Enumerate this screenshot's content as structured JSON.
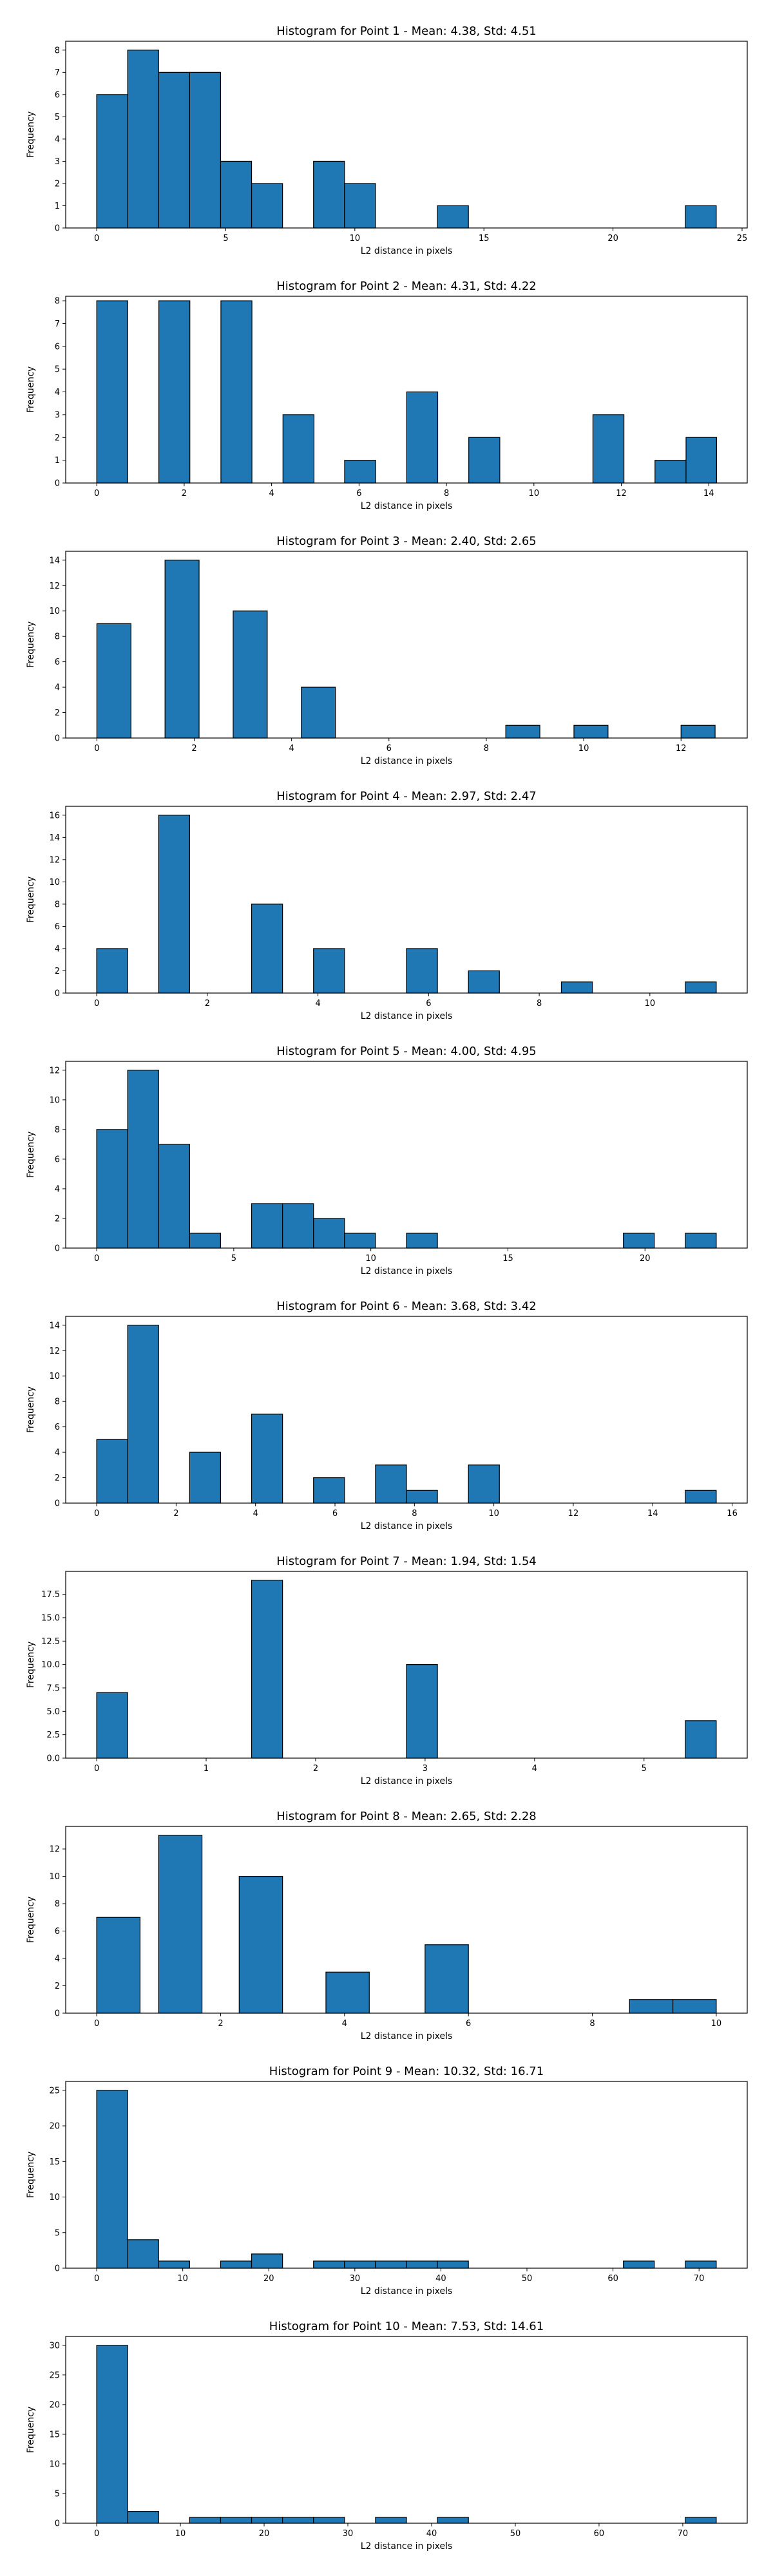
{
  "colors": {
    "bar_fill": "#1f77b4",
    "bar_edge": "#000000",
    "axes": "#000000",
    "background": "#ffffff"
  },
  "chart_data": [
    {
      "type": "bar",
      "title": "Histogram for Point 1 - Mean: 4.38, Std: 4.51",
      "xlabel": "L2 distance in pixels",
      "ylabel": "Frequency",
      "xlim": [
        -1.2,
        25.2
      ],
      "ylim": [
        0,
        8.4
      ],
      "xticks": [
        0,
        5,
        10,
        15,
        20,
        25
      ],
      "yticks": [
        0,
        1,
        2,
        3,
        4,
        5,
        6,
        7,
        8
      ],
      "grid": false,
      "bins": [
        {
          "x0": 0.0,
          "x1": 1.2,
          "count": 6
        },
        {
          "x0": 1.2,
          "x1": 2.4,
          "count": 8
        },
        {
          "x0": 2.4,
          "x1": 3.6,
          "count": 7
        },
        {
          "x0": 3.6,
          "x1": 4.8,
          "count": 7
        },
        {
          "x0": 4.8,
          "x1": 6.0,
          "count": 3
        },
        {
          "x0": 6.0,
          "x1": 7.2,
          "count": 2
        },
        {
          "x0": 8.4,
          "x1": 9.6,
          "count": 3
        },
        {
          "x0": 9.6,
          "x1": 10.8,
          "count": 2
        },
        {
          "x0": 13.2,
          "x1": 14.4,
          "count": 1
        },
        {
          "x0": 22.8,
          "x1": 24.0,
          "count": 1
        }
      ]
    },
    {
      "type": "bar",
      "title": "Histogram for Point 2 - Mean: 4.31, Std: 4.22",
      "xlabel": "L2 distance in pixels",
      "ylabel": "Frequency",
      "xlim": [
        -0.71,
        14.88
      ],
      "ylim": [
        0,
        8.2
      ],
      "xticks": [
        0,
        2,
        4,
        6,
        8,
        10,
        12,
        14
      ],
      "yticks": [
        0,
        1,
        2,
        3,
        4,
        5,
        6,
        7,
        8
      ],
      "grid": false,
      "bins": [
        {
          "x0": 0.0,
          "x1": 0.71,
          "count": 8
        },
        {
          "x0": 1.42,
          "x1": 2.13,
          "count": 8
        },
        {
          "x0": 2.84,
          "x1": 3.55,
          "count": 8
        },
        {
          "x0": 4.26,
          "x1": 4.97,
          "count": 3
        },
        {
          "x0": 5.67,
          "x1": 6.38,
          "count": 1
        },
        {
          "x0": 7.09,
          "x1": 7.8,
          "count": 4
        },
        {
          "x0": 8.51,
          "x1": 9.22,
          "count": 2
        },
        {
          "x0": 11.35,
          "x1": 12.06,
          "count": 3
        },
        {
          "x0": 12.77,
          "x1": 13.48,
          "count": 1
        },
        {
          "x0": 13.48,
          "x1": 14.18,
          "count": 2
        }
      ]
    },
    {
      "type": "bar",
      "title": "Histogram for Point 3 - Mean: 2.40, Std: 2.65",
      "xlabel": "L2 distance in pixels",
      "ylabel": "Frequency",
      "xlim": [
        -0.64,
        13.36
      ],
      "ylim": [
        0,
        14.7
      ],
      "xticks": [
        0,
        2,
        4,
        6,
        8,
        10,
        12
      ],
      "yticks": [
        0,
        2,
        4,
        6,
        8,
        10,
        12,
        14
      ],
      "grid": false,
      "bins": [
        {
          "x0": 0.0,
          "x1": 0.7,
          "count": 9
        },
        {
          "x0": 1.4,
          "x1": 2.1,
          "count": 14
        },
        {
          "x0": 2.8,
          "x1": 3.5,
          "count": 10
        },
        {
          "x0": 4.2,
          "x1": 4.9,
          "count": 4
        },
        {
          "x0": 8.4,
          "x1": 9.1,
          "count": 1
        },
        {
          "x0": 9.8,
          "x1": 10.5,
          "count": 1
        },
        {
          "x0": 12.0,
          "x1": 12.7,
          "count": 1
        }
      ]
    },
    {
      "type": "bar",
      "title": "Histogram for Point 4 - Mean: 2.97, Std: 2.47",
      "xlabel": "L2 distance in pixels",
      "ylabel": "Frequency",
      "xlim": [
        -0.56,
        11.76
      ],
      "ylim": [
        0,
        16.8
      ],
      "xticks": [
        0,
        2,
        4,
        6,
        8,
        10
      ],
      "yticks": [
        0,
        2,
        4,
        6,
        8,
        10,
        12,
        14,
        16
      ],
      "grid": false,
      "bins": [
        {
          "x0": 0.0,
          "x1": 0.56,
          "count": 4
        },
        {
          "x0": 1.12,
          "x1": 1.68,
          "count": 16
        },
        {
          "x0": 2.8,
          "x1": 3.36,
          "count": 8
        },
        {
          "x0": 3.92,
          "x1": 4.48,
          "count": 4
        },
        {
          "x0": 5.6,
          "x1": 6.16,
          "count": 4
        },
        {
          "x0": 6.72,
          "x1": 7.28,
          "count": 2
        },
        {
          "x0": 8.4,
          "x1": 8.96,
          "count": 1
        },
        {
          "x0": 10.64,
          "x1": 11.2,
          "count": 1
        }
      ]
    },
    {
      "type": "bar",
      "title": "Histogram for Point 5 - Mean: 4.00, Std: 4.95",
      "xlabel": "L2 distance in pixels",
      "ylabel": "Frequency",
      "xlim": [
        -1.13,
        23.73
      ],
      "ylim": [
        0,
        12.6
      ],
      "xticks": [
        0,
        5,
        10,
        15,
        20
      ],
      "yticks": [
        0,
        2,
        4,
        6,
        8,
        10,
        12
      ],
      "grid": false,
      "bins": [
        {
          "x0": 0.0,
          "x1": 1.13,
          "count": 8
        },
        {
          "x0": 1.13,
          "x1": 2.26,
          "count": 12
        },
        {
          "x0": 2.26,
          "x1": 3.39,
          "count": 7
        },
        {
          "x0": 3.39,
          "x1": 4.52,
          "count": 1
        },
        {
          "x0": 5.65,
          "x1": 6.78,
          "count": 3
        },
        {
          "x0": 6.78,
          "x1": 7.91,
          "count": 3
        },
        {
          "x0": 7.91,
          "x1": 9.04,
          "count": 2
        },
        {
          "x0": 9.04,
          "x1": 10.17,
          "count": 1
        },
        {
          "x0": 11.3,
          "x1": 12.43,
          "count": 1
        },
        {
          "x0": 19.21,
          "x1": 20.34,
          "count": 1
        },
        {
          "x0": 21.47,
          "x1": 22.6,
          "count": 1
        }
      ]
    },
    {
      "type": "bar",
      "title": "Histogram for Point 6 - Mean: 3.68, Std: 3.42",
      "xlabel": "L2 distance in pixels",
      "ylabel": "Frequency",
      "xlim": [
        -0.78,
        16.38
      ],
      "ylim": [
        0,
        14.7
      ],
      "xticks": [
        0,
        2,
        4,
        6,
        8,
        10,
        12,
        14,
        16
      ],
      "yticks": [
        0,
        2,
        4,
        6,
        8,
        10,
        12,
        14
      ],
      "grid": false,
      "bins": [
        {
          "x0": 0.0,
          "x1": 0.78,
          "count": 5
        },
        {
          "x0": 0.78,
          "x1": 1.56,
          "count": 14
        },
        {
          "x0": 2.34,
          "x1": 3.12,
          "count": 4
        },
        {
          "x0": 3.9,
          "x1": 4.68,
          "count": 7
        },
        {
          "x0": 5.46,
          "x1": 6.24,
          "count": 2
        },
        {
          "x0": 7.02,
          "x1": 7.8,
          "count": 3
        },
        {
          "x0": 7.8,
          "x1": 8.58,
          "count": 1
        },
        {
          "x0": 9.36,
          "x1": 10.14,
          "count": 3
        },
        {
          "x0": 14.82,
          "x1": 15.6,
          "count": 1
        }
      ]
    },
    {
      "type": "bar",
      "title": "Histogram for Point 7 - Mean: 1.94, Std: 1.54",
      "xlabel": "L2 distance in pixels",
      "ylabel": "Frequency",
      "xlim": [
        -0.283,
        5.943
      ],
      "ylim": [
        0,
        19.95
      ],
      "xticks": [
        0,
        1,
        2,
        3,
        4,
        5
      ],
      "ytick_labels": [
        "0.0",
        "2.5",
        "5.0",
        "7.5",
        "10.0",
        "12.5",
        "15.0",
        "17.5"
      ],
      "yticks": [
        0,
        2.5,
        5,
        7.5,
        10,
        12.5,
        15,
        17.5
      ],
      "grid": false,
      "bins": [
        {
          "x0": 0.0,
          "x1": 0.283,
          "count": 7
        },
        {
          "x0": 1.415,
          "x1": 1.698,
          "count": 19
        },
        {
          "x0": 2.83,
          "x1": 3.113,
          "count": 10
        },
        {
          "x0": 5.377,
          "x1": 5.66,
          "count": 4
        }
      ]
    },
    {
      "type": "bar",
      "title": "Histogram for Point 8 - Mean: 2.65, Std: 2.28",
      "xlabel": "L2 distance in pixels",
      "ylabel": "Frequency",
      "xlim": [
        -0.5,
        10.5
      ],
      "ylim": [
        0,
        13.65
      ],
      "xticks": [
        0,
        2,
        4,
        6,
        8,
        10
      ],
      "yticks": [
        0,
        2,
        4,
        6,
        8,
        10,
        12
      ],
      "grid": false,
      "bins": [
        {
          "x0": 0.0,
          "x1": 0.7,
          "count": 7
        },
        {
          "x0": 1.0,
          "x1": 1.7,
          "count": 13
        },
        {
          "x0": 2.3,
          "x1": 3.0,
          "count": 10
        },
        {
          "x0": 3.7,
          "x1": 4.4,
          "count": 3
        },
        {
          "x0": 5.3,
          "x1": 6.0,
          "count": 5
        },
        {
          "x0": 8.6,
          "x1": 9.3,
          "count": 1
        },
        {
          "x0": 9.3,
          "x1": 10.0,
          "count": 1
        }
      ]
    },
    {
      "type": "bar",
      "title": "Histogram for Point 9 - Mean: 10.32, Std: 16.71",
      "xlabel": "L2 distance in pixels",
      "ylabel": "Frequency",
      "xlim": [
        -3.6,
        75.6
      ],
      "ylim": [
        0,
        26.25
      ],
      "xticks": [
        0,
        10,
        20,
        30,
        40,
        50,
        60,
        70
      ],
      "yticks": [
        0,
        5,
        10,
        15,
        20,
        25
      ],
      "grid": false,
      "bins": [
        {
          "x0": 0.0,
          "x1": 3.6,
          "count": 25
        },
        {
          "x0": 3.6,
          "x1": 7.2,
          "count": 4
        },
        {
          "x0": 7.2,
          "x1": 10.8,
          "count": 1
        },
        {
          "x0": 14.4,
          "x1": 18.0,
          "count": 1
        },
        {
          "x0": 18.0,
          "x1": 21.6,
          "count": 2
        },
        {
          "x0": 25.2,
          "x1": 28.8,
          "count": 1
        },
        {
          "x0": 28.8,
          "x1": 32.4,
          "count": 1
        },
        {
          "x0": 32.4,
          "x1": 36.0,
          "count": 1
        },
        {
          "x0": 36.0,
          "x1": 39.6,
          "count": 1
        },
        {
          "x0": 39.6,
          "x1": 43.2,
          "count": 1
        },
        {
          "x0": 61.2,
          "x1": 64.8,
          "count": 1
        },
        {
          "x0": 68.4,
          "x1": 72.0,
          "count": 1
        }
      ]
    },
    {
      "type": "bar",
      "title": "Histogram for Point 10 - Mean: 7.53, Std: 14.61",
      "xlabel": "L2 distance in pixels",
      "ylabel": "Frequency",
      "xlim": [
        -3.7,
        77.7
      ],
      "ylim": [
        0,
        31.5
      ],
      "xticks": [
        0,
        10,
        20,
        30,
        40,
        50,
        60,
        70
      ],
      "yticks": [
        0,
        5,
        10,
        15,
        20,
        25,
        30
      ],
      "grid": false,
      "bins": [
        {
          "x0": 0.0,
          "x1": 3.7,
          "count": 30
        },
        {
          "x0": 3.7,
          "x1": 7.4,
          "count": 2
        },
        {
          "x0": 11.1,
          "x1": 14.8,
          "count": 1
        },
        {
          "x0": 14.8,
          "x1": 18.5,
          "count": 1
        },
        {
          "x0": 18.5,
          "x1": 22.2,
          "count": 1
        },
        {
          "x0": 22.2,
          "x1": 25.9,
          "count": 1
        },
        {
          "x0": 25.9,
          "x1": 29.6,
          "count": 1
        },
        {
          "x0": 33.3,
          "x1": 37.0,
          "count": 1
        },
        {
          "x0": 40.7,
          "x1": 44.4,
          "count": 1
        },
        {
          "x0": 70.3,
          "x1": 74.0,
          "count": 1
        }
      ]
    }
  ]
}
